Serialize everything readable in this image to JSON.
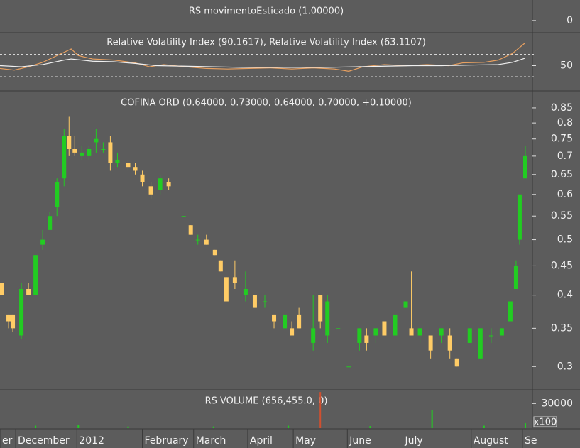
{
  "chart_data": [
    {
      "type": "signal",
      "title": "RS movimentoEsticado (1.00000)",
      "ylim": [
        -0.6,
        1
      ],
      "yticks": [
        0
      ]
    },
    {
      "type": "line",
      "title": "Relative Volatility Index (90.1617), Relative Volatility Index (63.1107)",
      "xlim": [
        0,
        187
      ],
      "ylim": [
        6,
        108
      ],
      "yticks": [
        50
      ],
      "levels": [
        70,
        30
      ],
      "series": [
        {
          "color": "#e8a060",
          "x": [
            0,
            5,
            10,
            15,
            20,
            25,
            27.5,
            32.5,
            40,
            47.5,
            52.5,
            57.5,
            65,
            72.5,
            80,
            87.5,
            95,
            102.5,
            110,
            117.5,
            122.5,
            127.5,
            135,
            142.5,
            150,
            157.5,
            162.5,
            170,
            175,
            180,
            184.25
          ],
          "values": [
            45,
            42,
            48,
            56,
            68,
            80,
            68,
            62,
            60,
            55,
            48,
            52,
            48,
            45,
            44,
            45,
            46,
            44,
            46,
            44,
            40,
            48,
            52,
            50,
            52,
            50,
            55,
            56,
            60,
            72,
            90.1617
          ]
        },
        {
          "color": "#f0f0f0",
          "x": [
            0,
            7.5,
            15,
            22.5,
            25,
            32.5,
            40,
            47.5,
            55,
            65,
            75,
            85,
            95,
            105,
            115,
            125,
            135,
            145,
            155,
            165,
            175,
            180,
            184.25
          ],
          "values": [
            50,
            48,
            52,
            60,
            62,
            58,
            57,
            54,
            50,
            49,
            48,
            47,
            47,
            47,
            47,
            48,
            49,
            50,
            50,
            51,
            52,
            56,
            63.1107
          ]
        }
      ]
    },
    {
      "type": "candlestick",
      "title": "COFINA ORD (0.64000, 0.73000, 0.64000, 0.70000, +0.10000)",
      "log_scale": true,
      "xlim": [
        0,
        187
      ],
      "ylim": [
        0.274,
        0.905
      ],
      "yticks": [
        0.85,
        0.8,
        0.75,
        0.7,
        0.65,
        0.6,
        0.55,
        0.5,
        0.45,
        0.4,
        0.35,
        0.3
      ],
      "up_color": "#22cc22",
      "down_color": "#ffcc66",
      "x": [
        0.5,
        3,
        4.5,
        7.5,
        10,
        12.5,
        15,
        17.5,
        20,
        22.5,
        24.25,
        26.25,
        28.75,
        31.25,
        33.75,
        36.25,
        38.75,
        41.25,
        45,
        47.5,
        50,
        53,
        56.25,
        59.25,
        64.5,
        67,
        69.5,
        72.5,
        75.5,
        77.5,
        79.5,
        82.5,
        86.25,
        89.5,
        93,
        96.25,
        100,
        102.5,
        105,
        110,
        112.5,
        115,
        118.75,
        122.5,
        126.25,
        128.75,
        132,
        135,
        138.75,
        142.5,
        144.5,
        147.5,
        151.25,
        155,
        158,
        160.5,
        165,
        168.75,
        172.5,
        176.25,
        179.25,
        181.25,
        182.5,
        184.5
      ],
      "open": [
        0.42,
        0.37,
        0.37,
        0.34,
        0.41,
        0.4,
        0.49,
        0.52,
        0.57,
        0.64,
        0.76,
        0.72,
        0.7,
        0.7,
        0.74,
        0.72,
        0.74,
        0.68,
        0.68,
        0.67,
        0.65,
        0.62,
        0.61,
        0.63,
        0.55,
        0.53,
        0.5,
        0.5,
        0.48,
        0.46,
        0.43,
        0.43,
        0.4,
        0.4,
        0.39,
        0.37,
        0.35,
        0.35,
        0.37,
        0.33,
        0.4,
        0.34,
        0.35,
        0.3,
        0.33,
        0.34,
        0.34,
        0.36,
        0.34,
        0.38,
        0.35,
        0.34,
        0.34,
        0.34,
        0.34,
        0.31,
        0.33,
        0.31,
        0.34,
        0.34,
        0.36,
        0.41,
        0.5,
        0.64
      ],
      "high": [
        0.42,
        0.37,
        0.37,
        0.42,
        0.42,
        0.47,
        0.52,
        0.56,
        0.64,
        0.78,
        0.82,
        0.76,
        0.73,
        0.73,
        0.78,
        0.74,
        0.76,
        0.71,
        0.69,
        0.68,
        0.66,
        0.63,
        0.65,
        0.64,
        0.55,
        0.53,
        0.51,
        0.51,
        0.48,
        0.46,
        0.43,
        0.46,
        0.44,
        0.4,
        0.4,
        0.37,
        0.37,
        0.36,
        0.38,
        0.4,
        0.4,
        0.4,
        0.35,
        0.3,
        0.35,
        0.35,
        0.35,
        0.36,
        0.37,
        0.39,
        0.44,
        0.35,
        0.34,
        0.35,
        0.35,
        0.31,
        0.35,
        0.35,
        0.35,
        0.35,
        0.39,
        0.46,
        0.6,
        0.73
      ],
      "low": [
        0.4,
        0.35,
        0.345,
        0.335,
        0.4,
        0.4,
        0.48,
        0.52,
        0.55,
        0.62,
        0.7,
        0.7,
        0.69,
        0.69,
        0.71,
        0.71,
        0.66,
        0.67,
        0.66,
        0.65,
        0.62,
        0.59,
        0.6,
        0.61,
        0.55,
        0.51,
        0.49,
        0.49,
        0.47,
        0.44,
        0.39,
        0.41,
        0.39,
        0.38,
        0.38,
        0.35,
        0.35,
        0.34,
        0.35,
        0.32,
        0.35,
        0.33,
        0.35,
        0.3,
        0.32,
        0.32,
        0.33,
        0.34,
        0.34,
        0.38,
        0.34,
        0.33,
        0.31,
        0.33,
        0.31,
        0.3,
        0.33,
        0.31,
        0.33,
        0.34,
        0.36,
        0.41,
        0.49,
        0.64
      ],
      "close": [
        0.4,
        0.36,
        0.35,
        0.41,
        0.4,
        0.47,
        0.5,
        0.55,
        0.63,
        0.76,
        0.72,
        0.71,
        0.71,
        0.72,
        0.75,
        0.72,
        0.68,
        0.69,
        0.67,
        0.66,
        0.63,
        0.6,
        0.64,
        0.62,
        0.55,
        0.51,
        0.5,
        0.49,
        0.47,
        0.44,
        0.39,
        0.42,
        0.41,
        0.38,
        0.39,
        0.36,
        0.37,
        0.34,
        0.35,
        0.35,
        0.36,
        0.39,
        0.35,
        0.3,
        0.35,
        0.33,
        0.35,
        0.34,
        0.37,
        0.39,
        0.34,
        0.35,
        0.32,
        0.35,
        0.32,
        0.3,
        0.35,
        0.35,
        0.34,
        0.35,
        0.39,
        0.45,
        0.6,
        0.7
      ],
      "xticks": [
        {
          "value": 0,
          "label": "er"
        },
        {
          "value": 5.5,
          "label": "December"
        },
        {
          "value": 27,
          "label": "2012"
        },
        {
          "value": 50,
          "label": "February"
        },
        {
          "value": 68,
          "label": "March"
        },
        {
          "value": 87,
          "label": "April"
        },
        {
          "value": 103,
          "label": "May"
        },
        {
          "value": 122,
          "label": "June"
        },
        {
          "value": 141.5,
          "label": "July"
        },
        {
          "value": 165.5,
          "label": "August"
        },
        {
          "value": 183.5,
          "label": "Se"
        }
      ]
    },
    {
      "type": "volume",
      "title": "RS VOLUME (656,455.0, 0)",
      "unit_label": "x100",
      "xlim": [
        0,
        187
      ],
      "ylim": [
        0,
        45000
      ],
      "yticks": [
        30000
      ],
      "x": [
        12.5,
        27.5,
        45,
        75,
        101.25,
        112.5,
        130,
        151.75,
        170,
        184.5
      ],
      "values": [
        3000,
        4000,
        2000,
        2000,
        3000,
        44000,
        2500,
        22000,
        3000,
        6000
      ],
      "colors": [
        "#22cc22",
        "#22cc22",
        "#22cc22",
        "#22cc22",
        "#22cc22",
        "#d05030",
        "#22cc22",
        "#22cc22",
        "#22cc22",
        "#22cc22"
      ]
    }
  ]
}
